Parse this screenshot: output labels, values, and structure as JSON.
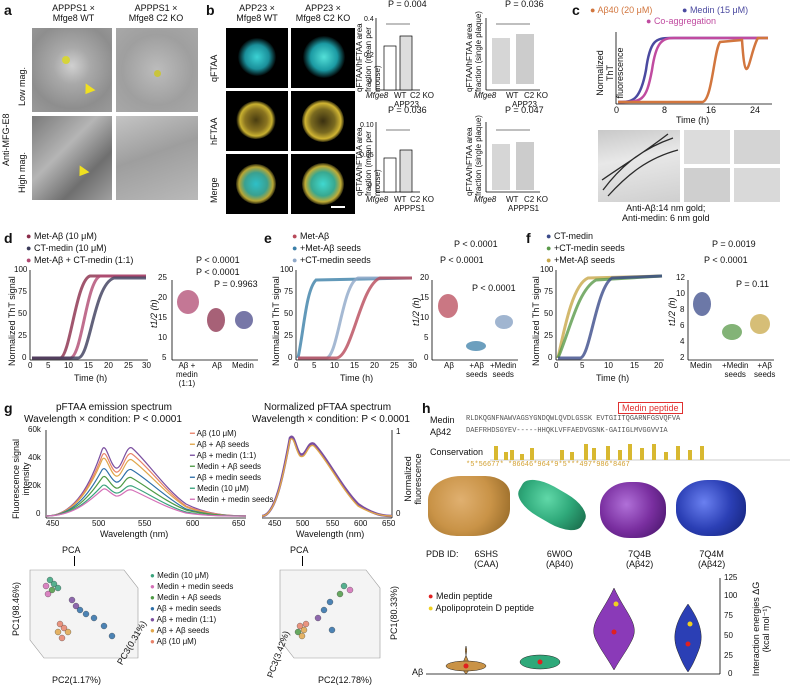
{
  "panels": [
    "a",
    "b",
    "c",
    "d",
    "e",
    "f",
    "g",
    "h"
  ],
  "a": {
    "cols": [
      "APPPS1 ×\nMfge8 WT",
      "APPPS1 ×\nMfge8 C2 KO"
    ],
    "rows": [
      "Low mag.",
      "High mag."
    ],
    "side": "Anti-MFG-E8"
  },
  "b": {
    "cols": [
      "APP23 ×\nMfge8 WT",
      "APP23 ×\nMfge8 C2 KO"
    ],
    "rows": [
      "qFTAA",
      "hFTAA",
      "Merge"
    ],
    "plots": [
      {
        "ylabel": "qFTAA/hFTAA area fraction (mean per mouse)",
        "p": "P = 0.004",
        "x": [
          "WT",
          "C2 KO"
        ],
        "xprefix": "Mfge8",
        "model": "APP23"
      },
      {
        "ylabel": "qFTAA/hFTAA area fraction (single plaque)",
        "p": "P = 0.036",
        "x": [
          "WT",
          "C2 KO"
        ],
        "xprefix": "Mfge8",
        "model": "APP23"
      },
      {
        "ylabel": "qFTAA/hFTAA area fraction (mean per mouse)",
        "p": "P = 0.036",
        "x": [
          "WT",
          "C2 KO"
        ],
        "xprefix": "Mfge8",
        "model": "APPPS1"
      },
      {
        "ylabel": "qFTAA/hFTAA area fraction (single plaque)",
        "p": "P = 0.047",
        "x": [
          "WT",
          "C2 KO"
        ],
        "xprefix": "Mfge8",
        "model": "APPPS1"
      }
    ],
    "ticks_top": [
      "0.4",
      "0.2",
      "0"
    ],
    "ticks_bot": [
      "0.10",
      "0.05",
      "0"
    ]
  },
  "c": {
    "legend": [
      "Aβ40 (20 μM)",
      "Medin (15 μM)",
      "Co-aggregation"
    ],
    "ylabel": "Normalized ThT fluorescence",
    "xlabel": "Time (h)",
    "xticks": [
      "0",
      "8",
      "16",
      "24"
    ],
    "caption": "Anti-Aβ:14 nm gold;\nAnti-medin: 6 nm gold"
  },
  "d": {
    "legend": [
      "Met-Aβ (10 μM)",
      "CT-medin (10 μM)",
      "Met-Aβ + CT-medin (1:1)"
    ],
    "ylabel": "Normalized ThT signal",
    "xlabel": "Time (h)",
    "xticks": [
      "0",
      "5",
      "10",
      "15",
      "20",
      "25",
      "30"
    ],
    "yticks": [
      "100",
      "75",
      "50",
      "25",
      "0"
    ],
    "p": [
      "P < 0.0001",
      "P < 0.0001",
      "P = 0.9963"
    ],
    "violin_y": [
      "25",
      "20",
      "15",
      "10",
      "5"
    ],
    "violin_x": [
      "Aβ +\nmedin\n(1:1)",
      "Aβ",
      "Medin"
    ],
    "t_label": "t1/2 (h)"
  },
  "e": {
    "legend": [
      "Met-Aβ",
      "+Met-Aβ seeds",
      "+CT-medin seeds"
    ],
    "ylabel": "Normalized ThT signal",
    "xlabel": "Time (h)",
    "xticks": [
      "0",
      "5",
      "10",
      "15",
      "20",
      "25",
      "30"
    ],
    "yticks": [
      "100",
      "75",
      "50",
      "25",
      "0"
    ],
    "p": [
      "P < 0.0001",
      "P < 0.0001",
      "P < 0.0001"
    ],
    "violin_y": [
      "20",
      "15",
      "10",
      "5",
      "0"
    ],
    "violin_x": [
      "Aβ",
      "+Aβ\nseeds",
      "+Medin\nseeds"
    ],
    "t_label": "t1/2 (h)"
  },
  "f": {
    "legend": [
      "CT-medin",
      "+CT-medin seeds",
      "+Met-Aβ seeds"
    ],
    "ylabel": "Normalized ThT signal",
    "xlabel": "Time (h)",
    "xticks": [
      "0",
      "5",
      "10",
      "15",
      "20"
    ],
    "yticks": [
      "100",
      "75",
      "50",
      "25",
      "0"
    ],
    "p": [
      "P = 0.0019",
      "P < 0.0001",
      "P = 0.11"
    ],
    "violin_y": [
      "12",
      "10",
      "8",
      "6",
      "4",
      "2"
    ],
    "violin_x": [
      "Medin",
      "+Medin\nseeds",
      "+Aβ\nseeds"
    ],
    "t_label": "t1/2 (h)"
  },
  "g": {
    "left_title": "pFTAA emission spectrum",
    "right_title": "Normalized pFTAA spectrum",
    "subtitle": "Wavelength × condition: P < 0.0001",
    "ylabel_left": "Fluorescence signal intensity",
    "ylabel_right": "Normalized fluorescence",
    "xlabel": "Wavelength (nm)",
    "left_yticks": [
      "60k",
      "40k",
      "20k",
      "0"
    ],
    "right_yticks": [
      "1",
      "0"
    ],
    "xticks": [
      "450",
      "500",
      "550",
      "600",
      "650"
    ],
    "legend": [
      {
        "name": "Aβ (10 μM)",
        "color": "#e8826a"
      },
      {
        "name": "Aβ + Aβ seeds",
        "color": "#e0a64a"
      },
      {
        "name": "Aβ + medin (1:1)",
        "color": "#7b4fa0"
      },
      {
        "name": "Medin + Aβ seeds",
        "color": "#4e9a45"
      },
      {
        "name": "Aβ + medin seeds",
        "color": "#2e6fa8"
      },
      {
        "name": "Medin (10 μM)",
        "color": "#3aa37c"
      },
      {
        "name": "Medin + medin seeds",
        "color": "#d46fb7"
      }
    ],
    "pca": "PCA",
    "pca_legend": [
      {
        "name": "Medin (10 μM)",
        "color": "#3aa37c"
      },
      {
        "name": "Medin + medin seeds",
        "color": "#d46fb7"
      },
      {
        "name": "Medin + Aβ seeds",
        "color": "#4e9a45"
      },
      {
        "name": "Aβ + medin seeds",
        "color": "#2e6fa8"
      },
      {
        "name": "Aβ + medin (1:1)",
        "color": "#7b4fa0"
      },
      {
        "name": "Aβ + Aβ seeds",
        "color": "#e0a64a"
      },
      {
        "name": "Aβ (10 μM)",
        "color": "#e8826a"
      }
    ],
    "pc_left": [
      "PC1(98.46%)",
      "PC2(1.17%)",
      "PC3(0.31%)"
    ],
    "pc_right": [
      "PC1(80.33%)",
      "PC2(12.78%)",
      "PC3(3.42%)"
    ]
  },
  "h": {
    "peptide_label": "Medin peptide",
    "seq_medin": "RLDKQGNFNAWVAGSYGNDQWLQVDLGSSK EVTGIITQGARNFGSVQFVA",
    "seq_ab42": "DAEFRHDSGYEV-----HHQKLVFFAEDVGSNK-GAIIGLMVGGVVIA",
    "row_labels": [
      "Medin",
      "Aβ42",
      "Conservation"
    ],
    "cons_string": "*5*56677*     *86646*964*9*5***497*986*8467",
    "pdb": [
      {
        "id": "6SHS",
        "src": "(CAA)",
        "color": "#c99347"
      },
      {
        "id": "6W0O",
        "src": "(Aβ40)",
        "color": "#2fa97a"
      },
      {
        "id": "7Q4B",
        "src": "(Aβ42)",
        "color": "#7a2fa0"
      },
      {
        "id": "7Q4M",
        "src": "(Aβ42)",
        "color": "#2b3fb5"
      }
    ],
    "pdb_prefix": "PDB ID:",
    "legend": [
      "Medin peptide",
      "Apolipoprotein D peptide"
    ],
    "ylabel": "Interaction energies ΔG (kcal mol⁻¹)",
    "yticks": [
      "125",
      "100",
      "75",
      "50",
      "25",
      "0"
    ],
    "bottom": "Aβ"
  }
}
